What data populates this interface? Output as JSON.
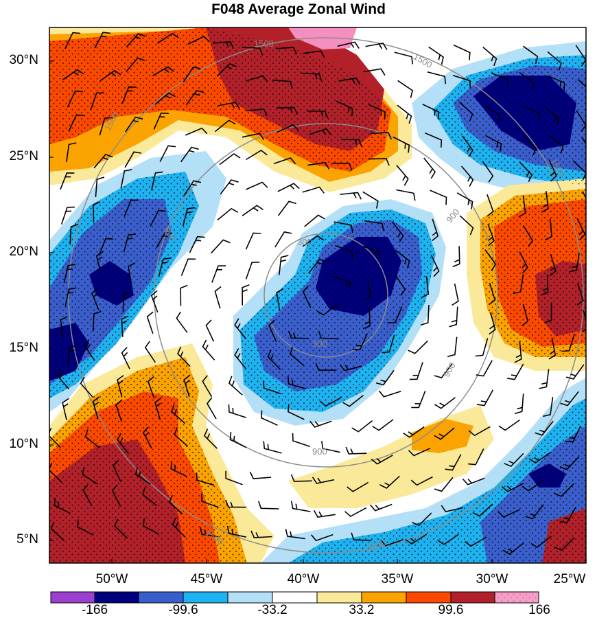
{
  "title": "F048 Average Zonal Wind",
  "map": {
    "lat_labels": [
      "30°N",
      "25°N",
      "20°N",
      "15°N",
      "10°N",
      "5°N"
    ],
    "lon_labels": [
      "50°W",
      "45°W",
      "40°W",
      "35°W",
      "30°W",
      "25°W"
    ],
    "contour_labels": [
      "1500",
      "1500",
      "1500",
      "1500",
      "900",
      "900",
      "900",
      "300",
      "300",
      "900",
      "1500",
      "1500"
    ]
  },
  "colorbar": {
    "tick_labels": [
      "-166",
      "-99.6",
      "-33.2",
      "33.2",
      "99.6",
      "166"
    ],
    "colors": [
      "#9b3fd0",
      "#00007f",
      "#3a5fcd",
      "#1fb2f0",
      "#b3dff7",
      "#ffffff",
      "#fbe99a",
      "#fba300",
      "#fb4a00",
      "#b2212a",
      "#f48fbf"
    ]
  }
}
